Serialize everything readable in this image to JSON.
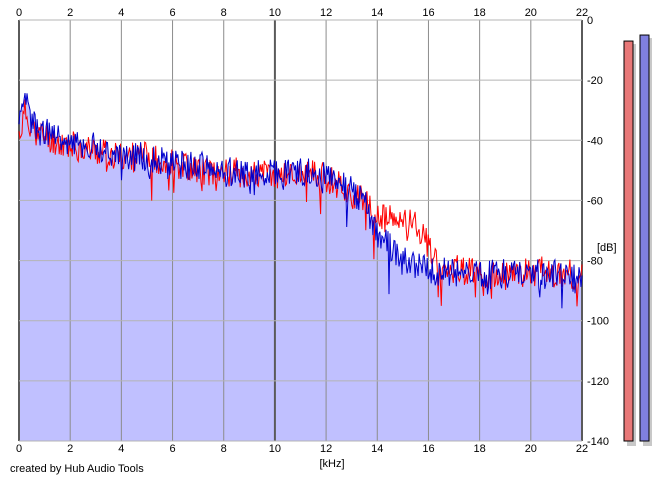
{
  "chart_data": {
    "type": "area",
    "xlabel": "[kHz]",
    "ylabel": "[dB]",
    "xlim": [
      0,
      22
    ],
    "ylim": [
      -140,
      0
    ],
    "x_ticks": [
      0,
      2,
      4,
      6,
      8,
      10,
      12,
      14,
      16,
      18,
      20,
      22
    ],
    "y_ticks": [
      0,
      -20,
      -40,
      -60,
      -80,
      -100,
      -120,
      -140
    ],
    "x_tick_labels": [
      "0",
      "2",
      "4",
      "6",
      "8",
      "10",
      "12",
      "14",
      "16",
      "18",
      "20",
      "22"
    ],
    "y_tick_labels": [
      "0",
      "-20",
      "-40",
      "-60",
      "-80",
      "-100",
      "-120",
      "-140"
    ],
    "grid": true,
    "x": [
      0,
      0.25,
      0.5,
      0.75,
      1,
      1.5,
      2,
      2.5,
      3,
      3.5,
      4,
      4.5,
      5,
      5.5,
      6,
      6.5,
      7,
      7.5,
      8,
      8.5,
      9,
      9.5,
      10,
      10.5,
      11,
      11.5,
      12,
      12.5,
      13,
      13.5,
      14,
      14.5,
      15,
      15.5,
      16,
      16.5,
      17,
      17.5,
      18,
      18.5,
      19,
      19.5,
      20,
      20.5,
      21,
      21.5,
      22
    ],
    "series": [
      {
        "color": "#ff0000",
        "values": [
          -38,
          -30,
          -35,
          -38,
          -38,
          -40,
          -41,
          -42,
          -43,
          -44,
          -45,
          -45,
          -45,
          -46,
          -47,
          -48,
          -49,
          -50,
          -50,
          -50,
          -51,
          -51,
          -51,
          -51,
          -51,
          -51,
          -52,
          -54,
          -58,
          -60,
          -65,
          -66,
          -67,
          -66,
          -75,
          -82,
          -82,
          -83,
          -84,
          -85,
          -85,
          -84,
          -83,
          -83,
          -84,
          -84,
          -84
        ]
      },
      {
        "color": "#0000cc",
        "values": [
          -36,
          -27,
          -33,
          -36,
          -37,
          -39,
          -40,
          -41,
          -42,
          -43,
          -44,
          -45,
          -45,
          -46,
          -47,
          -48,
          -48,
          -49,
          -50,
          -50,
          -50,
          -51,
          -50,
          -50,
          -50,
          -50,
          -51,
          -53,
          -56,
          -60,
          -70,
          -75,
          -80,
          -81,
          -83,
          -83,
          -84,
          -84,
          -84,
          -84,
          -84,
          -84,
          -84,
          -84,
          -84,
          -85,
          -86
        ]
      }
    ],
    "level_meters": [
      {
        "color": "#e87878",
        "level_db": -7
      },
      {
        "color": "#8080e0",
        "level_db": -5
      }
    ]
  },
  "footer": {
    "credit": "created by Hub Audio Tools"
  }
}
